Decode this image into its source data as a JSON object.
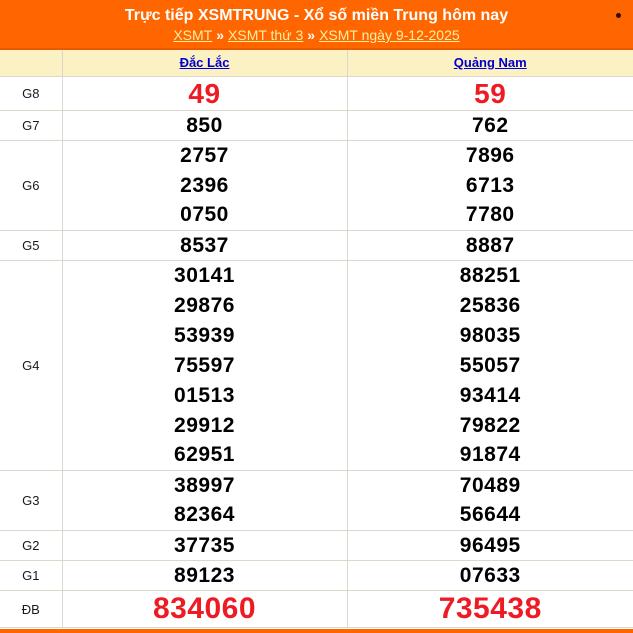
{
  "header": {
    "title": "Trực tiếp XSMTRUNG - Xổ số miền Trung hôm nay",
    "breadcrumb": {
      "separator": "»",
      "items": [
        {
          "label": "XSMT"
        },
        {
          "label": "XSMT thứ 3"
        },
        {
          "label": "XSMT ngày 9-12-2025"
        }
      ]
    }
  },
  "colors": {
    "banner_orange": "#FF6600",
    "column_header_bg": "#FCF1C2",
    "province_link_blue": "#0000CD",
    "breadcrumb_link_yellow": "#FFEFA0",
    "value_red": "#ED1C24",
    "grid_border": "#DBD7CB"
  },
  "results": {
    "province_columns": [
      {
        "label": "Đắc Lắc"
      },
      {
        "label": "Quảng Nam"
      }
    ],
    "groups": [
      {
        "label": "G8",
        "highlight": "large",
        "rows": [
          [
            "49",
            "59"
          ]
        ]
      },
      {
        "label": "G7",
        "highlight": "none",
        "rows": [
          [
            "850",
            "762"
          ]
        ]
      },
      {
        "label": "G6",
        "highlight": "none",
        "rows": [
          [
            "2757",
            "7896"
          ],
          [
            "2396",
            "6713"
          ],
          [
            "0750",
            "7780"
          ]
        ]
      },
      {
        "label": "G5",
        "highlight": "none",
        "rows": [
          [
            "8537",
            "8887"
          ]
        ]
      },
      {
        "label": "G4",
        "highlight": "none",
        "rows": [
          [
            "30141",
            "88251"
          ],
          [
            "29876",
            "25836"
          ],
          [
            "53939",
            "98035"
          ],
          [
            "75597",
            "55057"
          ],
          [
            "01513",
            "93414"
          ],
          [
            "29912",
            "79822"
          ],
          [
            "62951",
            "91874"
          ]
        ]
      },
      {
        "label": "G3",
        "highlight": "none",
        "rows": [
          [
            "38997",
            "70489"
          ],
          [
            "82364",
            "56644"
          ]
        ]
      },
      {
        "label": "G2",
        "highlight": "none",
        "rows": [
          [
            "37735",
            "96495"
          ]
        ]
      },
      {
        "label": "G1",
        "highlight": "none",
        "rows": [
          [
            "89123",
            "07633"
          ]
        ]
      },
      {
        "label": "ĐB",
        "highlight": "xlarge",
        "rows": [
          [
            "834060",
            "735438"
          ]
        ]
      }
    ]
  }
}
